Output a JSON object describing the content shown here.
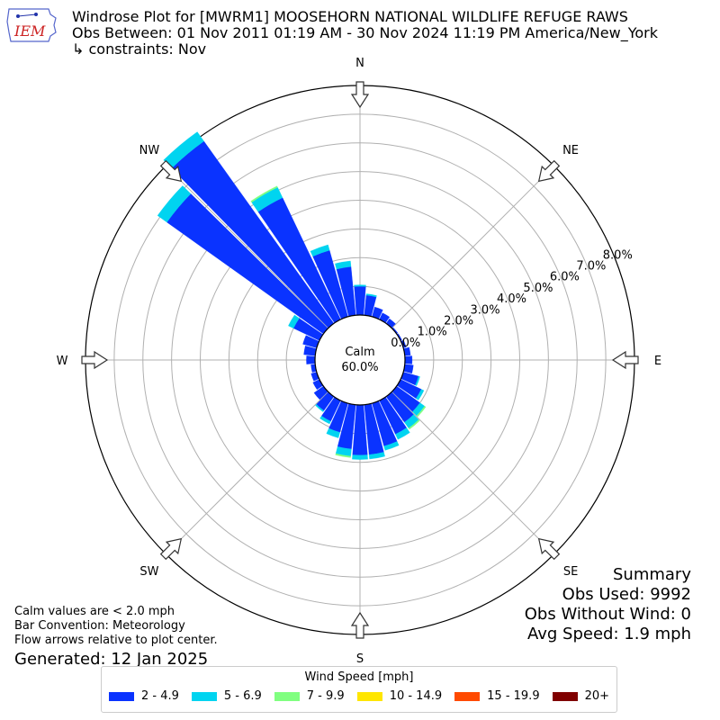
{
  "header": {
    "title": "Windrose Plot for [MWRM1] MOOSEHORN NATIONAL WILDLIFE REFUGE RAWS",
    "obs_range": "Obs Between: 01 Nov 2011 01:19 AM - 30 Nov 2024 11:19 PM America/New_York",
    "constraints": "↳ constraints: Nov"
  },
  "logo": {
    "text": "IEM",
    "icon": "iowa-state-outline-icon",
    "color": "#cc2222"
  },
  "notes": {
    "calm_note": "Calm values are < 2.0 mph",
    "bar_convention": "Bar Convention: Meteorology",
    "flow_arrows": "Flow arrows relative to plot center.",
    "generated": "Generated: 12 Jan 2025"
  },
  "summary": {
    "title": "Summary",
    "obs_used": "Obs Used: 9992",
    "obs_without_wind": "Obs Without Wind: 0",
    "avg_speed": "Avg Speed: 1.9 mph"
  },
  "legend": {
    "title": "Wind Speed [mph]",
    "items": [
      {
        "label": "2 - 4.9",
        "color": "#0a33ff"
      },
      {
        "label": "5 - 6.9",
        "color": "#00d4f0"
      },
      {
        "label": "7 - 9.9",
        "color": "#80ff80"
      },
      {
        "label": "10 - 14.9",
        "color": "#ffe600"
      },
      {
        "label": "15 - 19.9",
        "color": "#ff4a00"
      },
      {
        "label": "20+",
        "color": "#800000"
      }
    ]
  },
  "chart_data": {
    "type": "windrose",
    "calm_label": "Calm",
    "calm_value": "60.0%",
    "calm_percent": 60.0,
    "directions": [
      "N",
      "NE",
      "E",
      "SE",
      "S",
      "SW",
      "W",
      "NW"
    ],
    "radial_ticks": [
      "0.0%",
      "1.0%",
      "2.0%",
      "3.0%",
      "4.0%",
      "5.0%",
      "6.0%",
      "7.0%",
      "8.0%"
    ],
    "r_max": 8.0,
    "bin_width_deg": 10,
    "speed_bins": [
      "2 - 4.9",
      "5 - 6.9",
      "7 - 9.9",
      "10 - 14.9",
      "15 - 19.9",
      "20+"
    ],
    "bins": [
      {
        "dir": 0,
        "values": [
          1.0,
          0.05,
          0,
          0,
          0,
          0
        ]
      },
      {
        "dir": 10,
        "values": [
          0.7,
          0.05,
          0,
          0,
          0,
          0
        ]
      },
      {
        "dir": 20,
        "values": [
          0.35,
          0.0,
          0,
          0,
          0,
          0
        ]
      },
      {
        "dir": 30,
        "values": [
          0.25,
          0.0,
          0,
          0,
          0,
          0
        ]
      },
      {
        "dir": 40,
        "values": [
          0.2,
          0.0,
          0,
          0,
          0,
          0
        ]
      },
      {
        "dir": 50,
        "values": [
          0.05,
          0.0,
          0,
          0,
          0,
          0
        ]
      },
      {
        "dir": 60,
        "values": [
          0.05,
          0.0,
          0,
          0,
          0,
          0
        ]
      },
      {
        "dir": 70,
        "values": [
          0.1,
          0.0,
          0,
          0,
          0,
          0
        ]
      },
      {
        "dir": 80,
        "values": [
          0.2,
          0.0,
          0,
          0,
          0,
          0
        ]
      },
      {
        "dir": 90,
        "values": [
          0.25,
          0.0,
          0,
          0,
          0,
          0
        ]
      },
      {
        "dir": 100,
        "values": [
          0.3,
          0.0,
          0,
          0,
          0,
          0
        ]
      },
      {
        "dir": 110,
        "values": [
          0.55,
          0.05,
          0,
          0,
          0,
          0
        ]
      },
      {
        "dir": 120,
        "values": [
          0.8,
          0.1,
          0,
          0,
          0,
          0
        ]
      },
      {
        "dir": 130,
        "values": [
          1.0,
          0.2,
          0.05,
          0,
          0,
          0
        ]
      },
      {
        "dir": 140,
        "values": [
          1.1,
          0.25,
          0.05,
          0,
          0,
          0
        ]
      },
      {
        "dir": 150,
        "values": [
          1.3,
          0.2,
          0,
          0,
          0,
          0
        ]
      },
      {
        "dir": 160,
        "values": [
          1.55,
          0.15,
          0,
          0,
          0,
          0
        ]
      },
      {
        "dir": 170,
        "values": [
          1.75,
          0.15,
          0,
          0,
          0,
          0
        ]
      },
      {
        "dir": 180,
        "values": [
          1.75,
          0.15,
          0,
          0,
          0,
          0
        ]
      },
      {
        "dir": 190,
        "values": [
          1.55,
          0.25,
          0.05,
          0,
          0,
          0
        ]
      },
      {
        "dir": 200,
        "values": [
          1.05,
          0.2,
          0,
          0,
          0,
          0
        ]
      },
      {
        "dir": 210,
        "values": [
          0.8,
          0.1,
          0,
          0,
          0,
          0
        ]
      },
      {
        "dir": 220,
        "values": [
          0.6,
          0.05,
          0,
          0,
          0,
          0
        ]
      },
      {
        "dir": 230,
        "values": [
          0.4,
          0.0,
          0,
          0,
          0,
          0
        ]
      },
      {
        "dir": 240,
        "values": [
          0.25,
          0.0,
          0,
          0,
          0,
          0
        ]
      },
      {
        "dir": 250,
        "values": [
          0.2,
          0.0,
          0,
          0,
          0,
          0
        ]
      },
      {
        "dir": 260,
        "values": [
          0.15,
          0.0,
          0,
          0,
          0,
          0
        ]
      },
      {
        "dir": 270,
        "values": [
          0.3,
          0.0,
          0,
          0,
          0,
          0
        ]
      },
      {
        "dir": 280,
        "values": [
          0.4,
          0.0,
          0,
          0,
          0,
          0
        ]
      },
      {
        "dir": 290,
        "values": [
          0.5,
          0.0,
          0,
          0,
          0,
          0
        ]
      },
      {
        "dir": 300,
        "values": [
          1.0,
          0.2,
          0,
          0,
          0,
          0
        ]
      },
      {
        "dir": 310,
        "values": [
          6.7,
          0.4,
          0,
          0,
          0,
          0
        ]
      },
      {
        "dir": 320,
        "values": [
          7.8,
          0.4,
          0,
          0,
          0,
          0
        ]
      },
      {
        "dir": 330,
        "values": [
          4.7,
          0.4,
          0.05,
          0,
          0,
          0
        ]
      },
      {
        "dir": 340,
        "values": [
          2.4,
          0.2,
          0,
          0,
          0,
          0
        ]
      },
      {
        "dir": 350,
        "values": [
          1.7,
          0.2,
          0,
          0,
          0,
          0
        ]
      }
    ]
  }
}
